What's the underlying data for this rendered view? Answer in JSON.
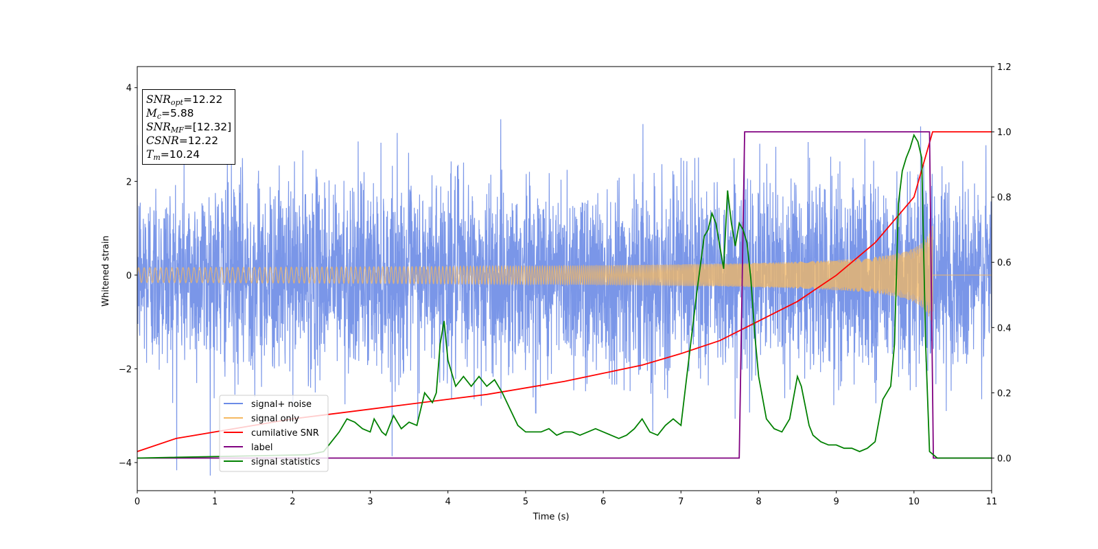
{
  "chart_data": {
    "type": "line",
    "xlabel": "Time (s)",
    "ylabel": "Whitened strain",
    "xlim": [
      0,
      11
    ],
    "ylim_left": [
      -4.6,
      4.45
    ],
    "ylim_right": [
      -0.1,
      1.2
    ],
    "x_ticks": [
      "0",
      "1",
      "2",
      "3",
      "4",
      "5",
      "6",
      "7",
      "8",
      "9",
      "10",
      "11"
    ],
    "y_ticks_left": [
      "−4",
      "−2",
      "0",
      "2",
      "4"
    ],
    "y_ticks_right": [
      "0.0",
      "0.2",
      "0.4",
      "0.6",
      "0.8",
      "1.0",
      "1.2"
    ],
    "legend_position": "lower-left",
    "series": [
      {
        "name": "signal+ noise",
        "axis": "left",
        "color": "#6b8be6",
        "description_amplitude": 1.0
      },
      {
        "name": "signal only",
        "axis": "left",
        "color": "#f5b860"
      },
      {
        "name": "cumilative SNR",
        "axis": "right",
        "color": "#ff0000",
        "x": [
          0,
          0.5,
          1,
          1.5,
          2,
          2.5,
          3,
          3.5,
          4,
          4.5,
          5,
          5.5,
          6,
          6.5,
          7,
          7.5,
          8,
          8.5,
          9,
          9.5,
          10,
          10.24,
          10.25,
          11
        ],
        "y": [
          0.02,
          0.06,
          0.08,
          0.1,
          0.12,
          0.135,
          0.15,
          0.165,
          0.18,
          0.195,
          0.215,
          0.235,
          0.26,
          0.285,
          0.32,
          0.36,
          0.42,
          0.48,
          0.56,
          0.66,
          0.8,
          1.0,
          1.0,
          1.0
        ]
      },
      {
        "name": "label",
        "axis": "right",
        "color": "#800080",
        "x": [
          0,
          7.75,
          7.82,
          10.2,
          10.25,
          11
        ],
        "y": [
          0,
          0,
          1,
          1,
          0,
          0
        ]
      },
      {
        "name": "signal statistics",
        "axis": "right",
        "color": "#008000",
        "x": [
          0,
          2.2,
          2.4,
          2.5,
          2.6,
          2.7,
          2.8,
          2.9,
          3.0,
          3.05,
          3.1,
          3.15,
          3.2,
          3.25,
          3.3,
          3.4,
          3.5,
          3.6,
          3.7,
          3.8,
          3.85,
          3.9,
          3.95,
          4.0,
          4.1,
          4.2,
          4.3,
          4.4,
          4.5,
          4.6,
          4.7,
          4.8,
          4.9,
          5.0,
          5.1,
          5.2,
          5.3,
          5.4,
          5.5,
          5.6,
          5.7,
          5.8,
          5.9,
          6.0,
          6.1,
          6.2,
          6.3,
          6.4,
          6.5,
          6.6,
          6.7,
          6.8,
          6.9,
          7.0,
          7.1,
          7.2,
          7.3,
          7.35,
          7.4,
          7.45,
          7.5,
          7.55,
          7.6,
          7.65,
          7.7,
          7.75,
          7.8,
          7.85,
          7.9,
          7.95,
          8.0,
          8.1,
          8.2,
          8.3,
          8.4,
          8.5,
          8.55,
          8.6,
          8.65,
          8.7,
          8.8,
          8.9,
          9.0,
          9.1,
          9.2,
          9.3,
          9.4,
          9.5,
          9.6,
          9.7,
          9.75,
          9.8,
          9.85,
          9.9,
          9.95,
          10.0,
          10.05,
          10.1,
          10.15,
          10.2,
          10.25,
          10.3,
          10.5,
          11
        ],
        "y": [
          0,
          0.01,
          0.02,
          0.05,
          0.08,
          0.12,
          0.11,
          0.09,
          0.08,
          0.12,
          0.1,
          0.08,
          0.07,
          0.1,
          0.13,
          0.09,
          0.11,
          0.1,
          0.2,
          0.17,
          0.2,
          0.35,
          0.42,
          0.3,
          0.22,
          0.25,
          0.22,
          0.25,
          0.22,
          0.24,
          0.2,
          0.15,
          0.1,
          0.08,
          0.08,
          0.08,
          0.09,
          0.07,
          0.08,
          0.08,
          0.07,
          0.08,
          0.09,
          0.08,
          0.07,
          0.06,
          0.07,
          0.09,
          0.12,
          0.08,
          0.07,
          0.1,
          0.12,
          0.1,
          0.3,
          0.5,
          0.68,
          0.7,
          0.75,
          0.72,
          0.65,
          0.58,
          0.82,
          0.72,
          0.65,
          0.72,
          0.7,
          0.66,
          0.55,
          0.38,
          0.25,
          0.12,
          0.09,
          0.08,
          0.12,
          0.25,
          0.22,
          0.16,
          0.1,
          0.07,
          0.05,
          0.04,
          0.04,
          0.03,
          0.03,
          0.02,
          0.03,
          0.05,
          0.18,
          0.22,
          0.35,
          0.78,
          0.88,
          0.92,
          0.95,
          0.99,
          0.97,
          0.92,
          0.35,
          0.02,
          0.01,
          0.0,
          0.0,
          0.0
        ]
      }
    ]
  },
  "info_box": {
    "snr_opt_label": "SNR",
    "snr_opt_sub": "opt",
    "snr_opt_value": "=12.22",
    "mc_label": "M",
    "mc_sub": "c",
    "mc_value": "=5.88",
    "snr_mf_label": "SNR",
    "snr_mf_sub": "MF",
    "snr_mf_value": "=[12.32]",
    "csnr_label": "CSNR",
    "csnr_value": "=12.22",
    "tm_label": "T",
    "tm_sub": "m",
    "tm_value": "=10.24"
  }
}
